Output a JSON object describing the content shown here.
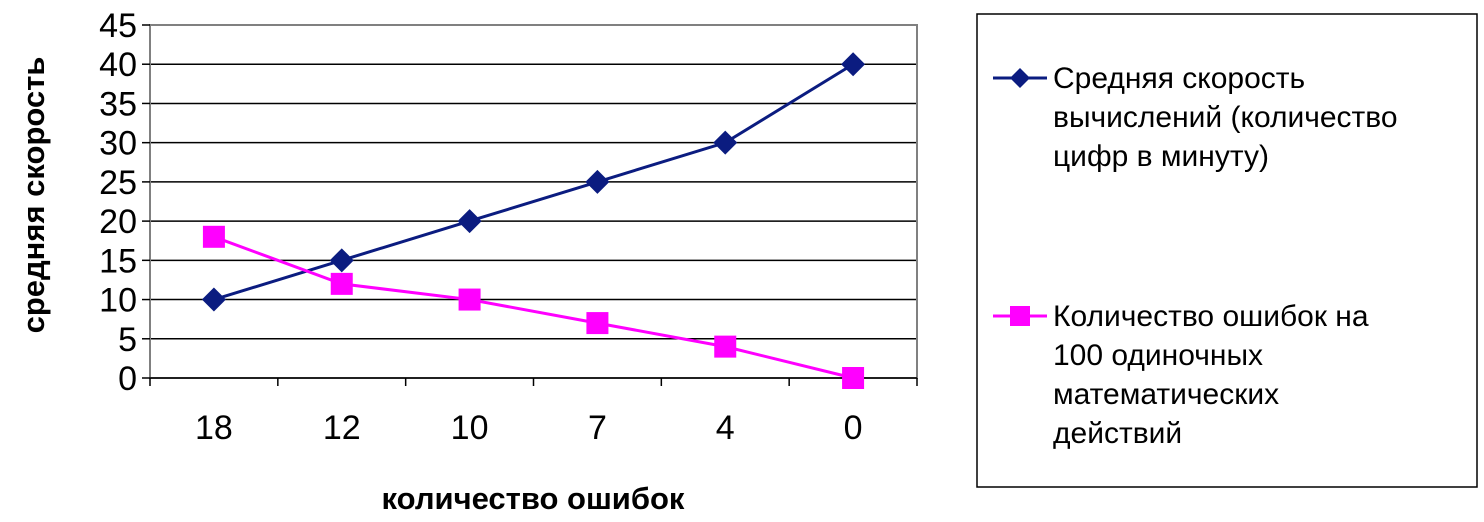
{
  "chart_data": {
    "type": "line",
    "categories": [
      "18",
      "12",
      "10",
      "7",
      "4",
      "0"
    ],
    "series": [
      {
        "name": "Средняя скорость вычислений (количество цифр  в минуту)",
        "name_lines": [
          "Средняя скорость",
          "вычислений (количество",
          "цифр  в минуту)"
        ],
        "values": [
          10,
          15,
          20,
          25,
          30,
          40
        ],
        "color": "#0b1c80",
        "marker": "diamond"
      },
      {
        "name": "Количество ошибок на 100 одиночных математических действий",
        "name_lines": [
          "Количество ошибок на",
          "100 одиночных",
          "математических",
          "действий"
        ],
        "values": [
          18,
          12,
          10,
          7,
          4,
          0
        ],
        "color": "#ff00ff",
        "marker": "square"
      }
    ],
    "xlabel": "количество  ошибок",
    "ylabel": "средняя  скорость",
    "ylim": [
      0,
      45
    ],
    "yticks": [
      "0",
      "5",
      "10",
      "15",
      "20",
      "25",
      "30",
      "35",
      "40",
      "45"
    ],
    "grid": true,
    "legend_position": "right"
  }
}
